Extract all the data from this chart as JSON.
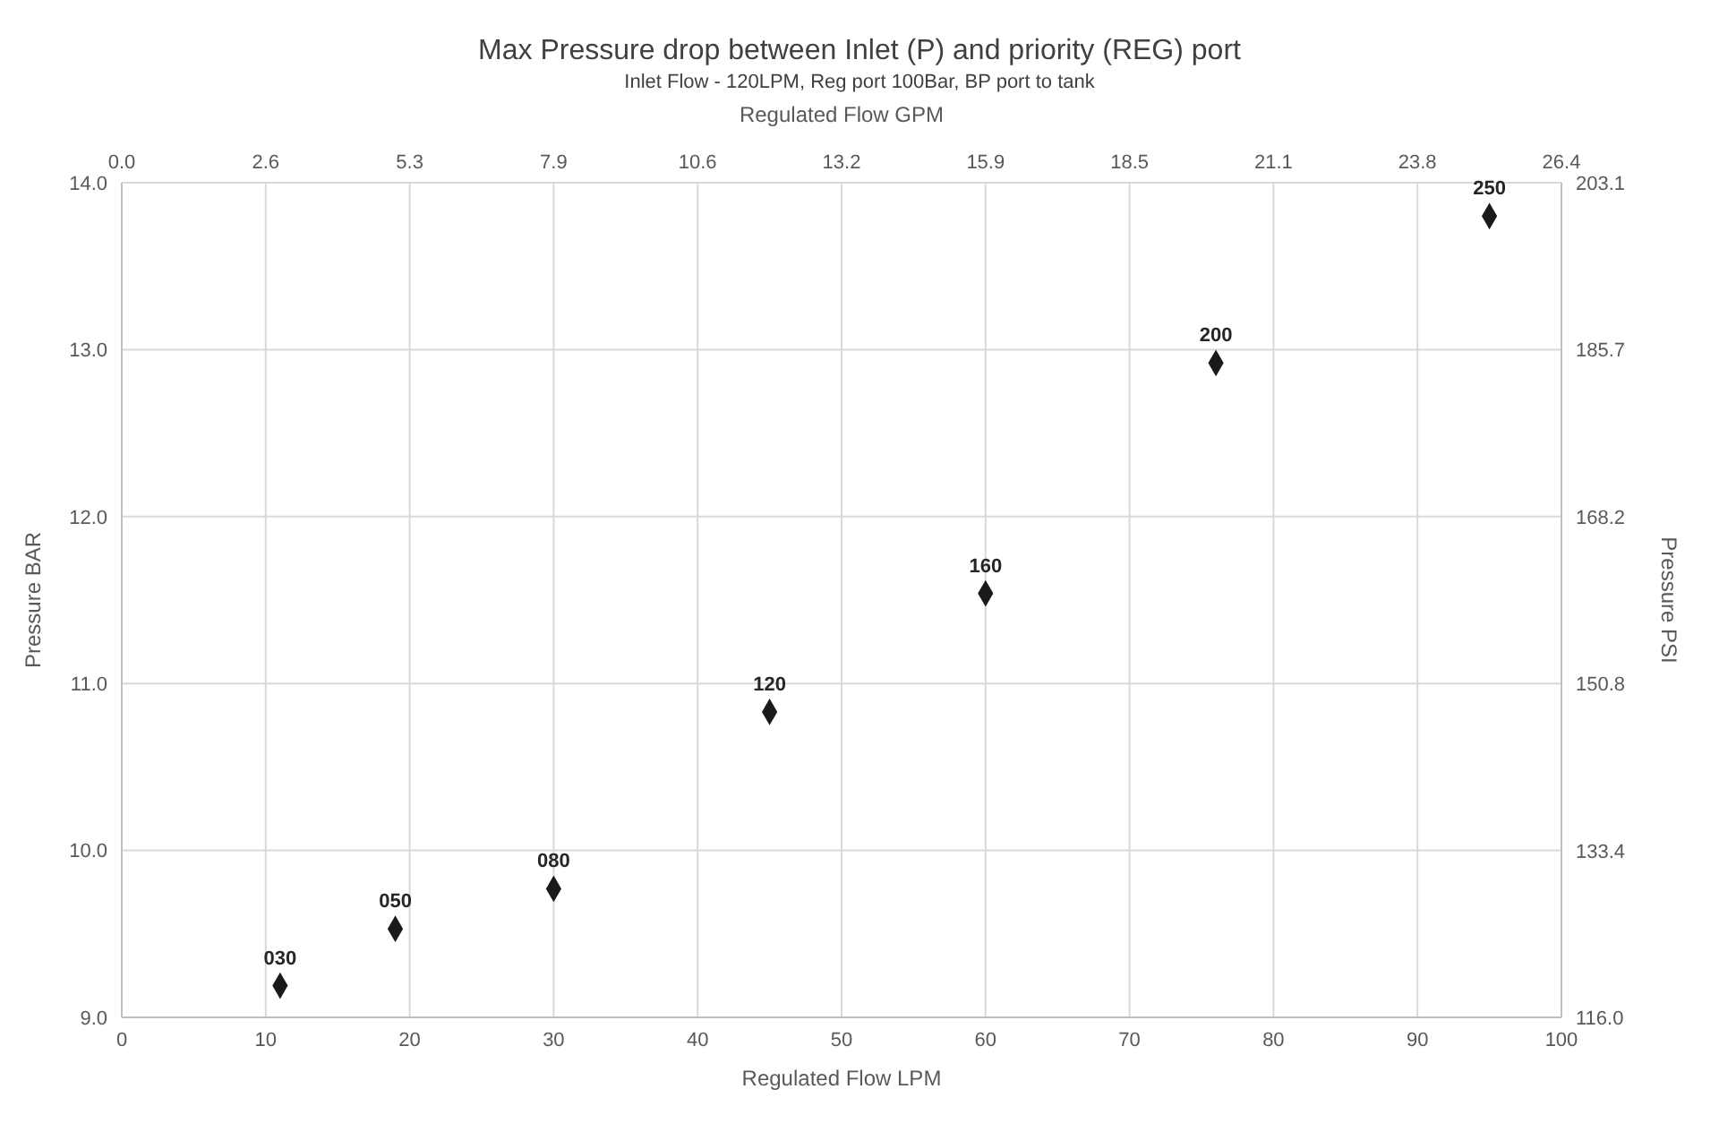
{
  "chart_data": {
    "type": "scatter",
    "title": "Max Pressure drop between Inlet (P) and priority (REG) port",
    "subtitle": "Inlet Flow - 120LPM, Reg port 100Bar, BP port to tank",
    "xlabel": "Regulated Flow LPM",
    "x2label": "Regulated Flow GPM",
    "ylabel": "Pressure BAR",
    "y2label": "Pressure PSI",
    "x": [
      11,
      19,
      30,
      45,
      60,
      76,
      95
    ],
    "series": [
      {
        "color": "#1a1a1a",
        "values": [
          9.19,
          9.53,
          9.77,
          10.83,
          11.54,
          12.92,
          13.8
        ]
      }
    ],
    "annotations": [
      {
        "text": "030",
        "x": 11,
        "y": 9.19
      },
      {
        "text": "050",
        "x": 19,
        "y": 9.53
      },
      {
        "text": "080",
        "x": 30,
        "y": 9.77
      },
      {
        "text": "120",
        "x": 45,
        "y": 10.83
      },
      {
        "text": "160",
        "x": 60,
        "y": 11.54
      },
      {
        "text": "200",
        "x": 76,
        "y": 12.92
      },
      {
        "text": "250",
        "x": 95,
        "y": 13.8
      }
    ],
    "xlim": [
      0,
      100
    ],
    "xticks": [
      0,
      10,
      20,
      30,
      40,
      50,
      60,
      70,
      80,
      90,
      100
    ],
    "x2lim": [
      0,
      26.417
    ],
    "x2ticks": [
      {
        "value": 0,
        "label": "0.0"
      },
      {
        "value": 2.6417,
        "label": "2.6"
      },
      {
        "value": 5.2834,
        "label": "5.3"
      },
      {
        "value": 7.9251,
        "label": "7.9"
      },
      {
        "value": 10.5668,
        "label": "10.6"
      },
      {
        "value": 13.2085,
        "label": "13.2"
      },
      {
        "value": 15.8502,
        "label": "15.9"
      },
      {
        "value": 18.4919,
        "label": "18.5"
      },
      {
        "value": 21.1336,
        "label": "21.1"
      },
      {
        "value": 23.7753,
        "label": "23.8"
      },
      {
        "value": 26.417,
        "label": "26.4"
      }
    ],
    "ylim": [
      9,
      14
    ],
    "yticks": [
      {
        "value": 9,
        "label": "9.0"
      },
      {
        "value": 10,
        "label": "10.0"
      },
      {
        "value": 11,
        "label": "11.0"
      },
      {
        "value": 12,
        "label": "12.0"
      },
      {
        "value": 13,
        "label": "13.0"
      },
      {
        "value": 14,
        "label": "14.0"
      }
    ],
    "y2lim": [
      116.0,
      203.1
    ],
    "y2ticks": [
      {
        "value": 116.0,
        "label": "116.0"
      },
      {
        "value": 133.4,
        "label": "133.4"
      },
      {
        "value": 150.8,
        "label": "150.8"
      },
      {
        "value": 168.2,
        "label": "168.2"
      },
      {
        "value": 185.7,
        "label": "185.7"
      },
      {
        "value": 203.1,
        "label": "203.1"
      }
    ],
    "grid": true,
    "legend": false,
    "marker": "diamond"
  }
}
